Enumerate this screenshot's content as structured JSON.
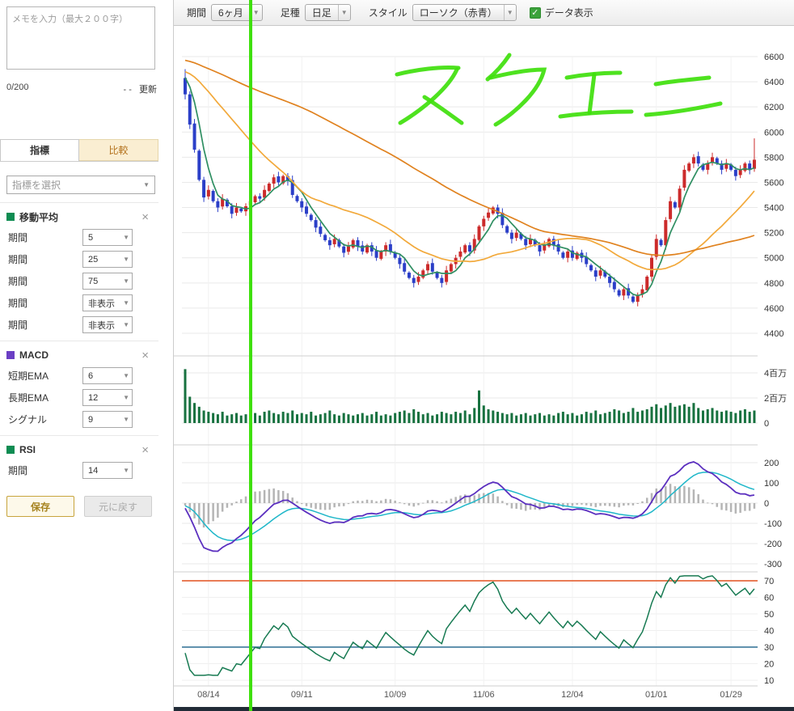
{
  "icons": {
    "caret": "▼",
    "close": "×",
    "check": "✓"
  },
  "sidebar": {
    "memo": {
      "placeholder": "メモを入力（最大２００字）",
      "counter": "0/200",
      "updated": "- -",
      "update_label": "更新"
    },
    "tabs": [
      {
        "label": "指標"
      },
      {
        "label": "比較"
      }
    ],
    "indicator_select_placeholder": "指標を選択",
    "cards": [
      {
        "title": "移動平均",
        "color": "#0e8c52",
        "rows": [
          {
            "label": "期間",
            "value": "5"
          },
          {
            "label": "期間",
            "value": "25"
          },
          {
            "label": "期間",
            "value": "75"
          },
          {
            "label": "期間",
            "value": "非表示"
          },
          {
            "label": "期間",
            "value": "非表示"
          }
        ]
      },
      {
        "title": "MACD",
        "color": "#6b3fc4",
        "rows": [
          {
            "label": "短期EMA",
            "value": "6"
          },
          {
            "label": "長期EMA",
            "value": "12"
          },
          {
            "label": "シグナル",
            "value": "9"
          }
        ]
      },
      {
        "title": "RSI",
        "color": "#0e8c52",
        "rows": [
          {
            "label": "期間",
            "value": "14"
          }
        ]
      }
    ],
    "save_label": "保存",
    "reset_label": "元に戻す"
  },
  "toolbar": {
    "period_label": "期間",
    "period_value": "6ヶ月",
    "bar_type_label": "足種",
    "bar_type_value": "日足",
    "style_label": "スタイル",
    "style_value": "ローソク（赤青）",
    "data_display_label": "データ表示",
    "data_display_checked": true
  },
  "chart_data": {
    "type": "candlestick",
    "title": "",
    "x_labels": [
      "08/14",
      "09/11",
      "10/09",
      "11/06",
      "12/04",
      "01/01",
      "01/29"
    ],
    "x_label_indices": [
      5,
      25,
      45,
      64,
      83,
      101,
      117
    ],
    "price_axis": {
      "min": 4400,
      "max": 6600,
      "ticks": [
        6600,
        6400,
        6200,
        6000,
        5800,
        5600,
        5400,
        5200,
        5000,
        4800,
        4600,
        4400
      ]
    },
    "first_open": 6430,
    "last_candle_high": 5950,
    "closes": [
      6300,
      6060,
      5860,
      5620,
      5480,
      5540,
      5450,
      5400,
      5470,
      5410,
      5350,
      5400,
      5370,
      5410,
      5450,
      5490,
      5470,
      5540,
      5590,
      5640,
      5600,
      5650,
      5610,
      5500,
      5450,
      5400,
      5350,
      5300,
      5240,
      5190,
      5140,
      5100,
      5150,
      5090,
      5040,
      5090,
      5140,
      5090,
      5050,
      5100,
      5050,
      5000,
      5050,
      5100,
      5050,
      5000,
      4950,
      4890,
      4840,
      4800,
      4850,
      4900,
      4950,
      4890,
      4840,
      4800,
      4900,
      4950,
      5000,
      5050,
      5100,
      5050,
      5150,
      5250,
      5310,
      5360,
      5400,
      5350,
      5260,
      5200,
      5150,
      5200,
      5150,
      5100,
      5150,
      5100,
      5050,
      5100,
      5150,
      5100,
      5050,
      5000,
      5050,
      5000,
      5040,
      5000,
      4950,
      4900,
      4850,
      4900,
      4850,
      4800,
      4750,
      4700,
      4750,
      4700,
      4650,
      4700,
      4750,
      4850,
      5000,
      5150,
      5100,
      5300,
      5450,
      5400,
      5550,
      5700,
      5750,
      5800,
      5750,
      5700,
      5750,
      5800,
      5750,
      5700,
      5750,
      5700,
      5650,
      5700,
      5750,
      5700,
      5780
    ],
    "prior_trend_for_warmup": {
      "start": 6700,
      "end": 6450,
      "days": 75
    },
    "moving_averages": [
      {
        "period": 5,
        "color": "#2f8f62"
      },
      {
        "period": 25,
        "color": "#f2a93b"
      },
      {
        "period": 75,
        "color": "#e0821f"
      }
    ],
    "candle_up_color": "#cc2b2b",
    "candle_down_color": "#2b3fc8",
    "volume": {
      "ticks": [
        "4百万",
        "2百万",
        "0"
      ],
      "tick_values": [
        4,
        2,
        0
      ],
      "color": "#17713f",
      "values_millions": [
        4.3,
        2.1,
        1.6,
        1.3,
        1.0,
        0.9,
        0.8,
        0.7,
        0.9,
        0.6,
        0.7,
        0.8,
        0.6,
        0.7,
        0.9,
        0.8,
        0.6,
        0.9,
        1.0,
        0.8,
        0.7,
        0.9,
        0.8,
        1.0,
        0.7,
        0.8,
        0.7,
        0.9,
        0.6,
        0.7,
        0.8,
        1.0,
        0.7,
        0.6,
        0.8,
        0.7,
        0.6,
        0.7,
        0.8,
        0.6,
        0.7,
        0.9,
        0.6,
        0.7,
        0.6,
        0.8,
        0.9,
        1.0,
        0.8,
        1.1,
        0.9,
        0.7,
        0.8,
        0.6,
        0.7,
        0.9,
        0.8,
        0.7,
        0.9,
        0.8,
        1.0,
        0.7,
        1.2,
        2.6,
        1.4,
        1.1,
        1.0,
        0.9,
        0.8,
        0.7,
        0.8,
        0.6,
        0.7,
        0.8,
        0.6,
        0.7,
        0.8,
        0.6,
        0.7,
        0.6,
        0.8,
        0.9,
        0.7,
        0.8,
        0.6,
        0.7,
        0.9,
        0.8,
        1.0,
        0.7,
        0.8,
        0.9,
        1.1,
        1.0,
        0.8,
        0.9,
        1.2,
        0.9,
        1.0,
        1.1,
        1.3,
        1.5,
        1.2,
        1.4,
        1.6,
        1.3,
        1.4,
        1.5,
        1.3,
        1.6,
        1.2,
        1.0,
        1.1,
        1.2,
        1.0,
        0.9,
        1.0,
        0.9,
        0.8,
        1.0,
        1.1,
        0.9,
        1.0
      ]
    },
    "macd": {
      "fast": 6,
      "slow": 12,
      "signal": 9,
      "ticks": [
        200,
        100,
        0,
        -100,
        -200,
        -300
      ],
      "line_color": "#5b2fbf",
      "signal_color": "#1fb7c9",
      "hist_color": "#b5b5b5"
    },
    "rsi": {
      "period": 14,
      "ticks": [
        70,
        60,
        50,
        40,
        30,
        20,
        10
      ],
      "line_color": "#177a52",
      "upper_line": {
        "value": 70,
        "color": "#e2511f"
      },
      "lower_line": {
        "value": 30,
        "color": "#2d6f94"
      }
    },
    "annotations": {
      "vertical_line_color": "#3fe00c",
      "handwriting_text": "スクエニ",
      "handwriting_color": "#3fe00c"
    }
  }
}
